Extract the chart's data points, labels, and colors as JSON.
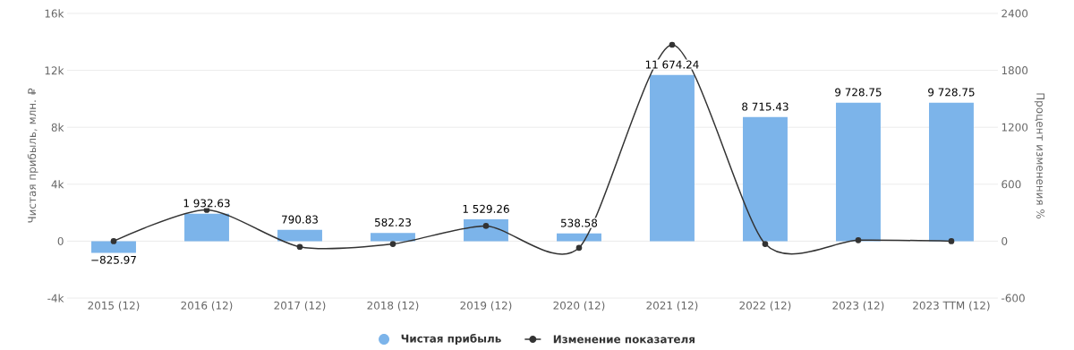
{
  "chart_data": {
    "type": "bar",
    "categories": [
      "2015 (12)",
      "2016 (12)",
      "2017 (12)",
      "2018 (12)",
      "2019 (12)",
      "2020 (12)",
      "2021 (12)",
      "2022 (12)",
      "2023 (12)",
      "2023 TTM (12)"
    ],
    "ylabel": "Чистая прибыль, млн. ₽",
    "y2label": "Процент изменения %",
    "series": [
      {
        "name": "Чистая прибыль",
        "color": "#7cb4ea",
        "values": [
          -825.97,
          1932.63,
          790.83,
          582.23,
          1529.26,
          538.58,
          11674.24,
          8715.43,
          9728.75,
          9728.75
        ],
        "value_labels": [
          "−825.97",
          "1 932.63",
          "790.83",
          "582.23",
          "1 529.26",
          "538.58",
          "11 674.24",
          "8 715.43",
          "9 728.75",
          "9 728.75"
        ]
      },
      {
        "name": "Изменение показателя",
        "type": "line",
        "axis": "y2",
        "color": "#333333",
        "marker": "circle",
        "line_style": "solid",
        "values": [
          0,
          330,
          -60,
          -30,
          160,
          -70,
          2070,
          -30,
          10,
          0
        ]
      }
    ],
    "ylim": [
      -4000,
      16000
    ],
    "yticks": [
      {
        "value": -4000,
        "label": "-4k"
      },
      0,
      {
        "value": 4000,
        "label": "4k"
      },
      {
        "value": 8000,
        "label": "8k"
      },
      {
        "value": 12000,
        "label": "12k"
      },
      {
        "value": 16000,
        "label": "16k"
      }
    ],
    "y2lim": [
      -600,
      2400
    ],
    "y2ticks": [
      -600,
      0,
      600,
      1200,
      1800,
      2400
    ],
    "grid": "y",
    "legend": "bottom"
  }
}
